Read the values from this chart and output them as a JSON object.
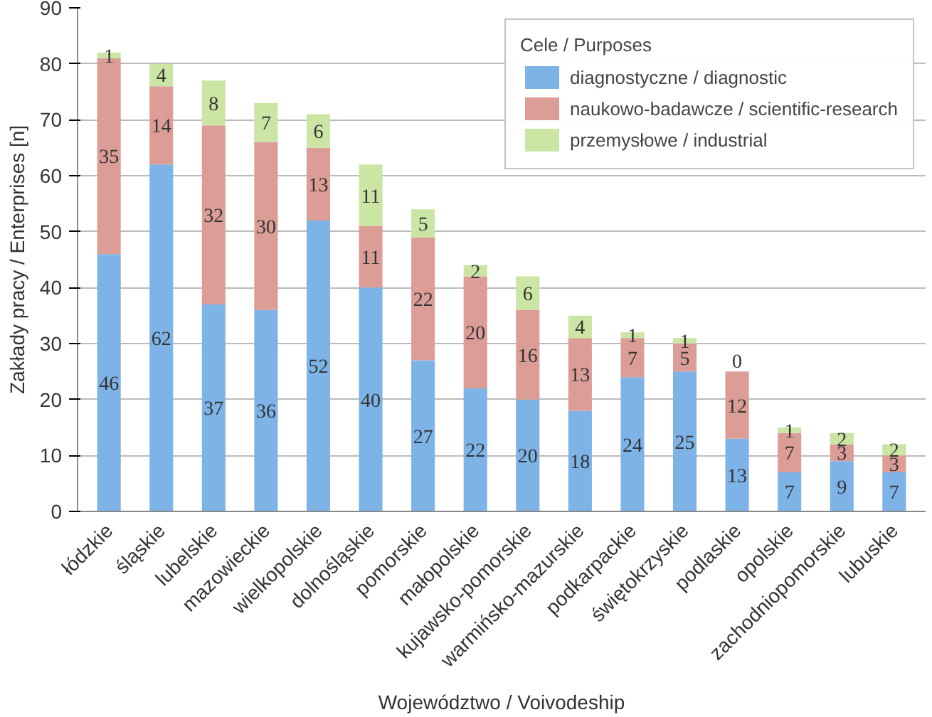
{
  "chart_data": {
    "type": "bar",
    "stacked": true,
    "xlabel": "Województwo / Voivodeship",
    "ylabel": "Zakłady pracy / Enterprises [n]",
    "legend_title": "Cele / Purposes",
    "categories": [
      "łódzkie",
      "śląskie",
      "lubelskie",
      "mazowieckie",
      "wielkopolskie",
      "dolnośląskie",
      "pomorskie",
      "małopolskie",
      "kujawsko-pomorskie",
      "warmińsko-mazurskie",
      "podkarpackie",
      "świętokrzyskie",
      "podlaskie",
      "opolskie",
      "zachodniopomorskie",
      "lubuskie"
    ],
    "series": [
      {
        "name": "diagnostyczne / diagnostic",
        "color": "#7db3e6",
        "values": [
          46,
          62,
          37,
          36,
          52,
          40,
          27,
          22,
          20,
          18,
          24,
          25,
          13,
          7,
          9,
          7
        ]
      },
      {
        "name": "naukowo-badawcze / scientific-research",
        "color": "#dc9d97",
        "values": [
          35,
          14,
          32,
          30,
          13,
          11,
          22,
          20,
          16,
          13,
          7,
          5,
          12,
          7,
          3,
          3
        ]
      },
      {
        "name": "przemysłowe / industrial",
        "color": "#cbe5a4",
        "values": [
          1,
          4,
          8,
          7,
          6,
          11,
          5,
          2,
          6,
          4,
          1,
          1,
          0,
          1,
          2,
          2
        ]
      }
    ],
    "ylim": [
      0,
      90
    ],
    "yticks": [
      0,
      10,
      20,
      30,
      40,
      50,
      60,
      70,
      80,
      90
    ],
    "grid": "y",
    "legend": "top right",
    "data_labels": true
  }
}
